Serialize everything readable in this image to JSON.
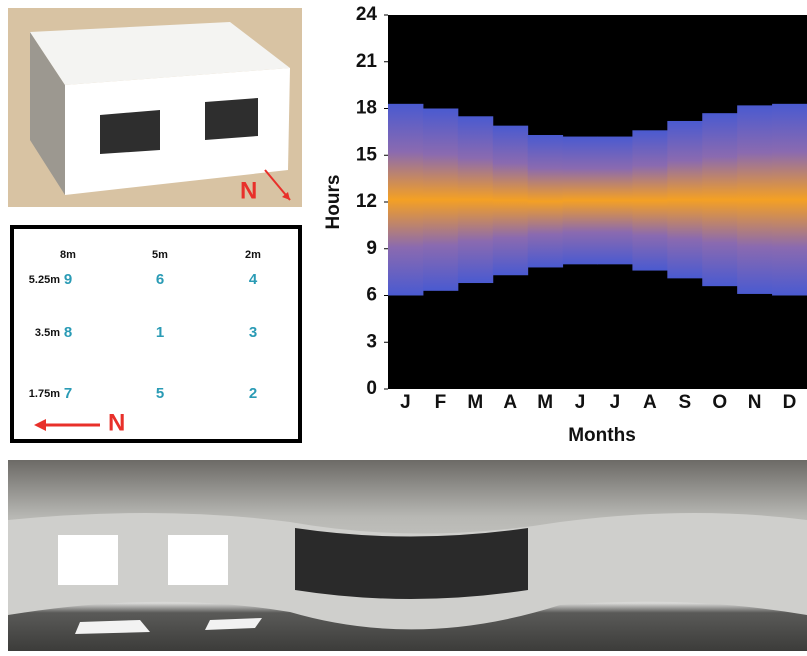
{
  "chart_data": {
    "type": "heatmap",
    "xlabel": "Months",
    "ylabel": "Hours",
    "categories": [
      "J",
      "F",
      "M",
      "A",
      "M",
      "J",
      "J",
      "A",
      "S",
      "O",
      "N",
      "D"
    ],
    "values": [
      [
        6,
        18.3
      ],
      [
        6.3,
        18
      ],
      [
        6.8,
        17.5
      ],
      [
        7.3,
        16.9
      ],
      [
        7.8,
        16.3
      ],
      [
        8,
        16.2
      ],
      [
        8,
        16.2
      ],
      [
        7.6,
        16.6
      ],
      [
        7.1,
        17.2
      ],
      [
        6.6,
        17.7
      ],
      [
        6.1,
        18.2
      ],
      [
        6,
        18.3
      ]
    ],
    "ylim": [
      0,
      24
    ],
    "yticks": [
      0,
      3,
      6,
      9,
      12,
      15,
      18,
      21,
      24
    ]
  },
  "diagram": {
    "columns": [
      "8m",
      "5m",
      "2m"
    ],
    "rows": [
      [
        "5.25m",
        "9",
        "6",
        "4"
      ],
      [
        "3.5m",
        "8",
        "1",
        "3"
      ],
      [
        "1.75m",
        "7",
        "5",
        "2"
      ]
    ],
    "north_grid": "N",
    "north_render": "N"
  }
}
